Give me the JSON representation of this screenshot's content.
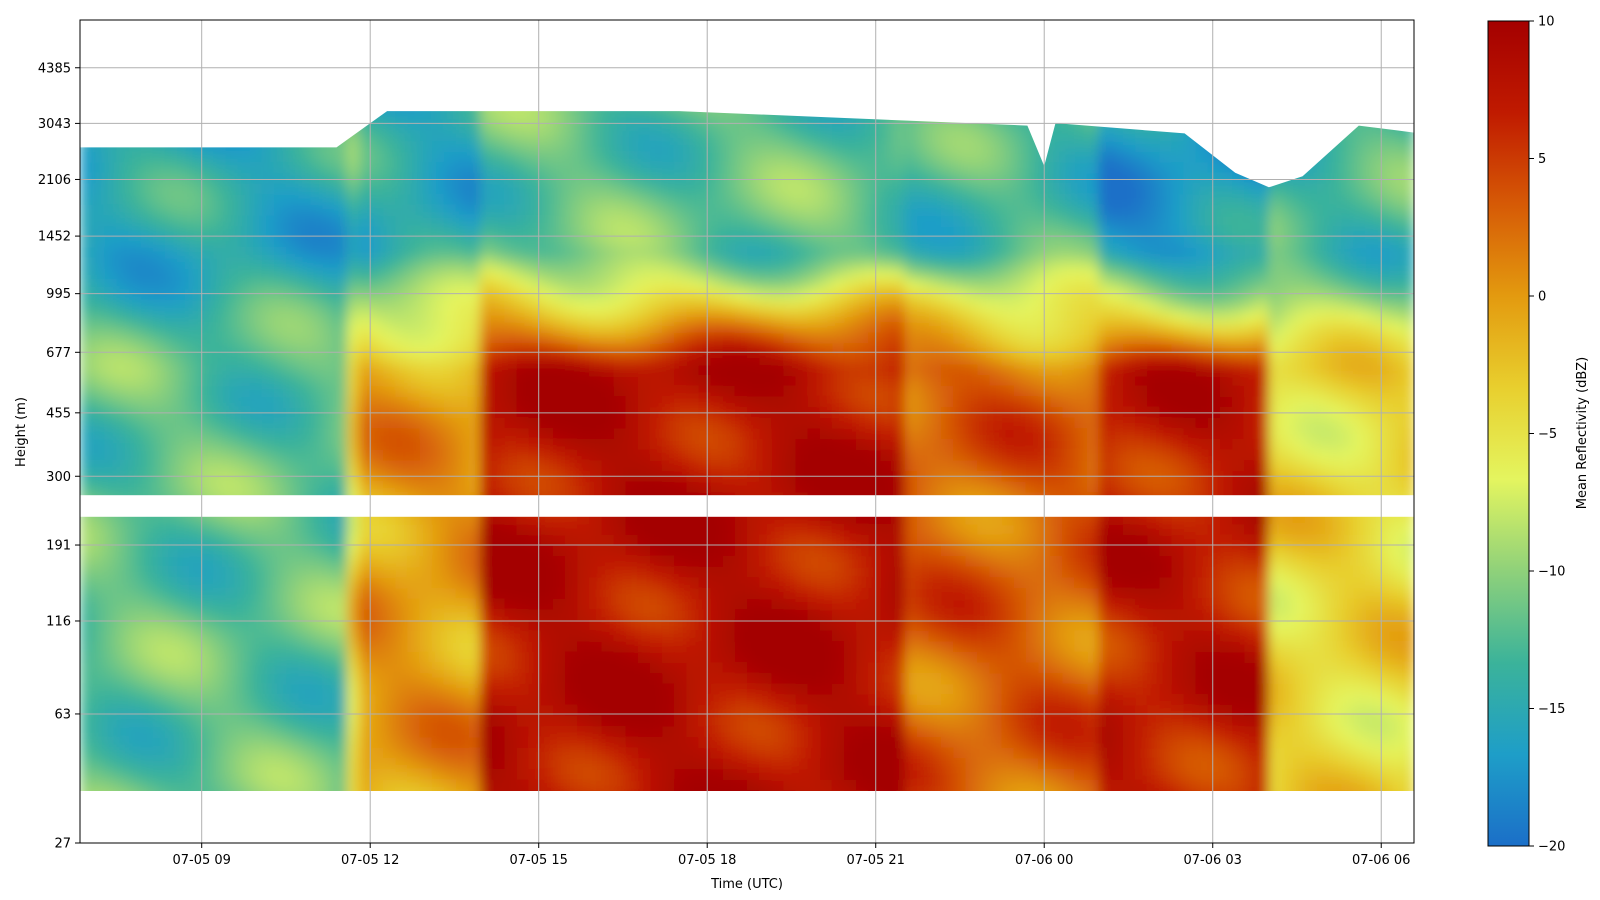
{
  "chart_data": {
    "type": "heatmap",
    "title": "",
    "xlabel": "Time (UTC)",
    "ylabel": "Height (m)",
    "colorbar_label": "Mean Reflectivity (dBZ)",
    "colormap": "jet-like: blue to green to yellow to orange to red",
    "clim": [
      -20,
      10
    ],
    "x_tick_labels": [
      "07-05 09",
      "07-05 12",
      "07-05 15",
      "07-05 18",
      "07-05 21",
      "07-06 00",
      "07-06 03",
      "07-06 06"
    ],
    "x_range": [
      "07-05 06:50",
      "07-06 06:35"
    ],
    "y_scale": "log",
    "y_tick_labels": [
      "27",
      "63",
      "116",
      "191",
      "300",
      "455",
      "677",
      "995",
      "1452",
      "2106",
      "3043",
      "4385"
    ],
    "y_range": [
      27,
      6000
    ],
    "colorbar_ticks": [
      "10",
      "5",
      "0",
      "−5",
      "−10",
      "−15",
      "−20"
    ],
    "grid": true,
    "data_gap_height_range": [
      230,
      265
    ],
    "reflectivity_summary": [
      {
        "period": "07-05 06:50 to 07-05 11:30",
        "low_level_dbz": -12,
        "upper_level_dbz": -15
      },
      {
        "period": "07-05 11:45 to 07-05 14:00",
        "low_level_dbz": 0,
        "upper_level_dbz": -15
      },
      {
        "period": "07-05 14:00 to 07-05 21:30",
        "low_level_dbz": 8,
        "upper_level_dbz": -12
      },
      {
        "period": "07-05 21:30 to 07-06 01:00",
        "low_level_dbz": 3,
        "upper_level_dbz": -13
      },
      {
        "period": "07-06 01:00 to 07-06 04:00",
        "low_level_dbz": 7,
        "upper_level_dbz": -17
      },
      {
        "period": "07-06 04:00 to 07-06 06:35",
        "low_level_dbz": -4,
        "upper_level_dbz": -13
      }
    ]
  },
  "colors": {
    "colormap_stops": [
      "#1b6fc8",
      "#1e9ec8",
      "#3bb39a",
      "#8fd17a",
      "#e4f55f",
      "#e8cf2e",
      "#e39a0f",
      "#d65a06",
      "#c01a00",
      "#a40000"
    ],
    "grid": "#b0b0b0",
    "gap": "#ffffff"
  }
}
